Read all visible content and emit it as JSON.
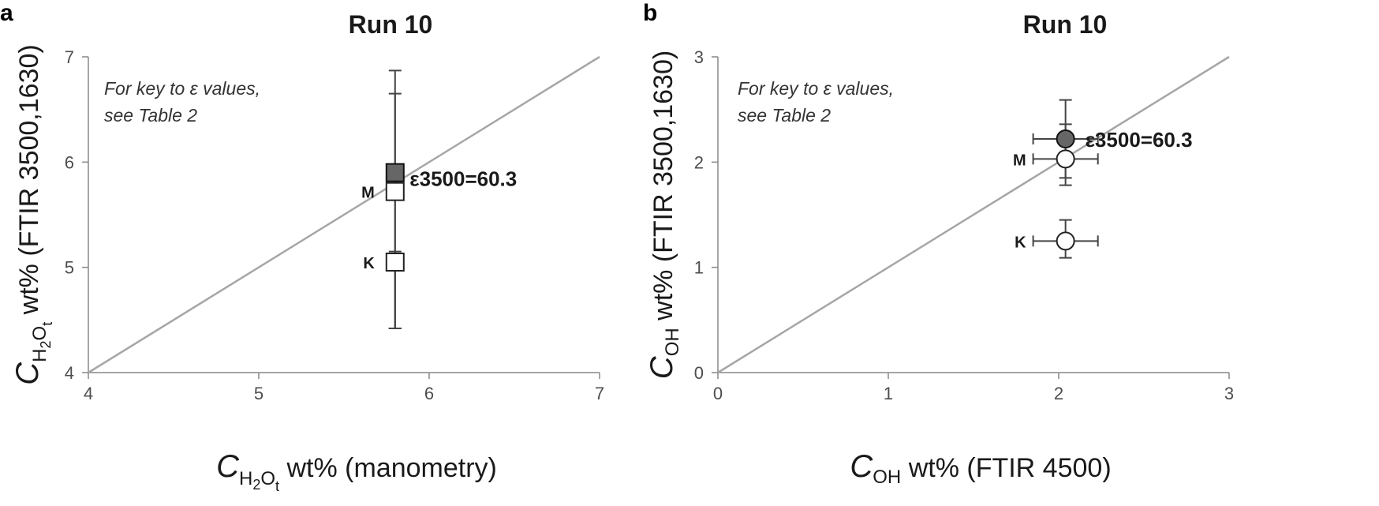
{
  "chart_data": [
    {
      "type": "scatter",
      "panel": "a",
      "title": "Run 10",
      "xlabel": {
        "var": "C",
        "sub": "H",
        "sub2": "2",
        "sub3": "O",
        "sub4": "t",
        "text": " wt% (manometry)"
      },
      "ylabel": {
        "var": "C",
        "sub": "H",
        "sub2": "2",
        "sub3": "O",
        "sub4": "t",
        "text": " wt% (FTIR 3500,1630)"
      },
      "xlim": [
        4,
        7
      ],
      "ylim": [
        4,
        7
      ],
      "xticks": [
        "4",
        "5",
        "6",
        "7"
      ],
      "yticks": [
        "4",
        "5",
        "6",
        "7"
      ],
      "reference_line": "1:1",
      "note_lines": [
        "For key to ε values,",
        "see Table 2"
      ],
      "marker": "square",
      "points": [
        {
          "x": 5.8,
          "y": 5.9,
          "fill": "#666666",
          "label": "",
          "ylow": 4.42,
          "yhigh": 6.87
        },
        {
          "x": 5.8,
          "y": 5.72,
          "fill": "#ffffff",
          "label": "M",
          "ylow": 4.42,
          "yhigh": 6.65
        },
        {
          "x": 5.8,
          "y": 5.05,
          "fill": "#ffffff",
          "label": "K",
          "ylow": 4.42,
          "yhigh": 5.15
        }
      ],
      "annotation": {
        "text": "ε3500=60.3",
        "x": 5.83,
        "y": 5.85
      }
    },
    {
      "type": "scatter",
      "panel": "b",
      "title": "Run 10",
      "xlabel": {
        "var": "C",
        "sub": "OH",
        "text": " wt% (FTIR 4500)"
      },
      "ylabel": {
        "var": "C",
        "sub": "OH",
        "text": " wt% (FTIR 3500,1630)"
      },
      "xlim": [
        0,
        3
      ],
      "ylim": [
        0,
        3
      ],
      "xticks": [
        "0",
        "1",
        "2",
        "3"
      ],
      "yticks": [
        "0",
        "1",
        "2",
        "3"
      ],
      "reference_line": "1:1",
      "note_lines": [
        "For key to ε values,",
        "see Table 2"
      ],
      "marker": "circle",
      "points": [
        {
          "x": 2.04,
          "y": 2.22,
          "fill": "#666666",
          "label": "",
          "xlow": 1.85,
          "xhigh": 2.23,
          "ylow": 1.85,
          "yhigh": 2.59
        },
        {
          "x": 2.04,
          "y": 2.03,
          "fill": "#ffffff",
          "label": "M",
          "xlow": 1.85,
          "xhigh": 2.23,
          "ylow": 1.78,
          "yhigh": 2.36
        },
        {
          "x": 2.04,
          "y": 1.25,
          "fill": "#ffffff",
          "label": "K",
          "xlow": 1.85,
          "xhigh": 2.23,
          "ylow": 1.09,
          "yhigh": 1.45
        }
      ],
      "annotation": {
        "text": "ε3500=60.3",
        "x": 2.1,
        "y": 2.22
      }
    }
  ]
}
